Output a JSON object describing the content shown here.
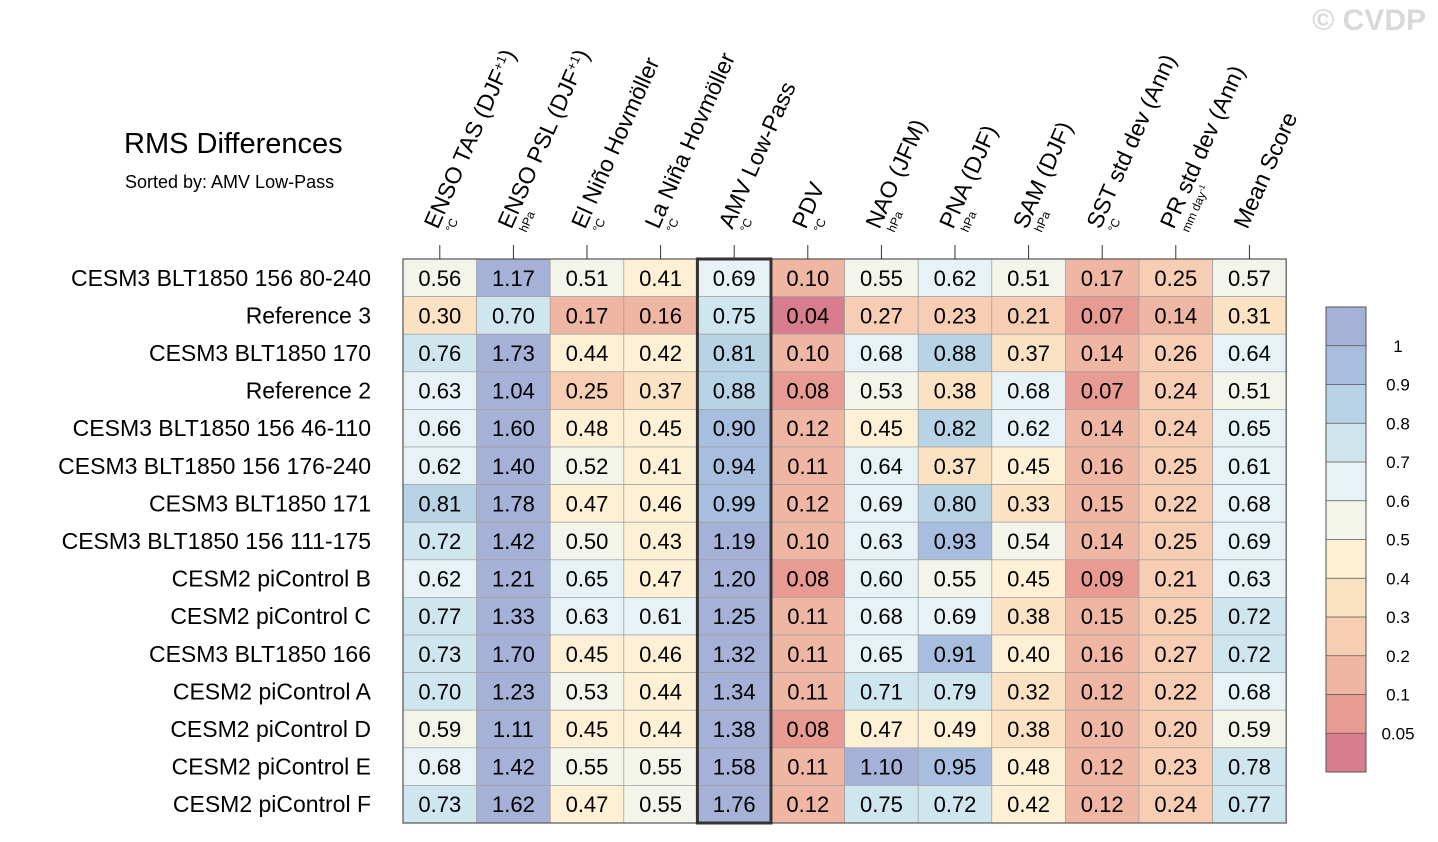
{
  "watermark": "© CVDP",
  "chart_data": {
    "type": "heatmap",
    "title": "RMS Differences",
    "subtitle": "Sorted by: AMV Low-Pass",
    "highlighted_column": "AMV Low-Pass",
    "columns": [
      {
        "name": "ENSO TAS (DJF+1)",
        "unit": "°C"
      },
      {
        "name": "ENSO PSL (DJF+1)",
        "unit": "hPa"
      },
      {
        "name": "El Niño Hovmöller",
        "unit": "°C"
      },
      {
        "name": "La Niña Hovmöller",
        "unit": "°C"
      },
      {
        "name": "AMV Low-Pass",
        "unit": "°C"
      },
      {
        "name": "PDV",
        "unit": "°C"
      },
      {
        "name": "NAO (JFM)",
        "unit": "hPa"
      },
      {
        "name": "PNA (DJF)",
        "unit": "hPa"
      },
      {
        "name": "SAM (DJF)",
        "unit": "hPa"
      },
      {
        "name": "SST std dev (Ann)",
        "unit": "°C"
      },
      {
        "name": "PR std dev (Ann)",
        "unit": "mm day-1"
      },
      {
        "name": "Mean Score",
        "unit": ""
      }
    ],
    "rows": [
      {
        "name": "CESM3 BLT1850 156 80-240",
        "values": [
          0.56,
          1.17,
          0.51,
          0.41,
          0.69,
          0.1,
          0.55,
          0.62,
          0.51,
          0.17,
          0.25,
          0.57
        ]
      },
      {
        "name": "Reference 3",
        "values": [
          0.3,
          0.7,
          0.17,
          0.16,
          0.75,
          0.04,
          0.27,
          0.23,
          0.21,
          0.07,
          0.14,
          0.31
        ]
      },
      {
        "name": "CESM3 BLT1850 170",
        "values": [
          0.76,
          1.73,
          0.44,
          0.42,
          0.81,
          0.1,
          0.68,
          0.88,
          0.37,
          0.14,
          0.26,
          0.64
        ]
      },
      {
        "name": "Reference 2",
        "values": [
          0.63,
          1.04,
          0.25,
          0.37,
          0.88,
          0.08,
          0.53,
          0.38,
          0.68,
          0.07,
          0.24,
          0.51
        ]
      },
      {
        "name": "CESM3 BLT1850 156 46-110",
        "values": [
          0.66,
          1.6,
          0.48,
          0.45,
          0.9,
          0.12,
          0.45,
          0.82,
          0.62,
          0.14,
          0.24,
          0.65
        ]
      },
      {
        "name": "CESM3 BLT1850 156 176-240",
        "values": [
          0.62,
          1.4,
          0.52,
          0.41,
          0.94,
          0.11,
          0.64,
          0.37,
          0.45,
          0.16,
          0.25,
          0.61
        ]
      },
      {
        "name": "CESM3 BLT1850 171",
        "values": [
          0.81,
          1.78,
          0.47,
          0.46,
          0.99,
          0.12,
          0.69,
          0.8,
          0.33,
          0.15,
          0.22,
          0.68
        ]
      },
      {
        "name": "CESM3 BLT1850 156 111-175",
        "values": [
          0.72,
          1.42,
          0.5,
          0.43,
          1.19,
          0.1,
          0.63,
          0.93,
          0.54,
          0.14,
          0.25,
          0.69
        ]
      },
      {
        "name": "CESM2 piControl B",
        "values": [
          0.62,
          1.21,
          0.65,
          0.47,
          1.2,
          0.08,
          0.6,
          0.55,
          0.45,
          0.09,
          0.21,
          0.63
        ]
      },
      {
        "name": "CESM2 piControl C",
        "values": [
          0.77,
          1.33,
          0.63,
          0.61,
          1.25,
          0.11,
          0.68,
          0.69,
          0.38,
          0.15,
          0.25,
          0.72
        ]
      },
      {
        "name": "CESM3 BLT1850 166",
        "values": [
          0.73,
          1.7,
          0.45,
          0.46,
          1.32,
          0.11,
          0.65,
          0.91,
          0.4,
          0.16,
          0.27,
          0.72
        ]
      },
      {
        "name": "CESM2 piControl A",
        "values": [
          0.7,
          1.23,
          0.53,
          0.44,
          1.34,
          0.11,
          0.71,
          0.79,
          0.32,
          0.12,
          0.22,
          0.68
        ]
      },
      {
        "name": "CESM2 piControl D",
        "values": [
          0.59,
          1.11,
          0.45,
          0.44,
          1.38,
          0.08,
          0.47,
          0.49,
          0.38,
          0.1,
          0.2,
          0.59
        ]
      },
      {
        "name": "CESM2 piControl E",
        "values": [
          0.68,
          1.42,
          0.55,
          0.55,
          1.58,
          0.11,
          1.1,
          0.95,
          0.48,
          0.12,
          0.23,
          0.78
        ]
      },
      {
        "name": "CESM2 piControl F",
        "values": [
          0.73,
          1.62,
          0.47,
          0.55,
          1.76,
          0.12,
          0.75,
          0.72,
          0.42,
          0.12,
          0.24,
          0.77
        ]
      }
    ],
    "colorbar": {
      "thresholds": [
        0.05,
        0.1,
        0.2,
        0.3,
        0.4,
        0.5,
        0.6,
        0.7,
        0.8,
        0.9,
        1
      ],
      "labels": [
        "0.05",
        "0.1",
        "0.2",
        "0.3",
        "0.4",
        "0.5",
        "0.6",
        "0.7",
        "0.8",
        "0.9",
        "1"
      ],
      "colors": [
        "#d87d8d",
        "#e79b93",
        "#f0b6a4",
        "#f7ceb4",
        "#fbe2c3",
        "#fdf0d4",
        "#f3f4ea",
        "#e6f2f5",
        "#d0e6ef",
        "#b8d3e6",
        "#a8bede",
        "#a5b1d7"
      ]
    }
  }
}
